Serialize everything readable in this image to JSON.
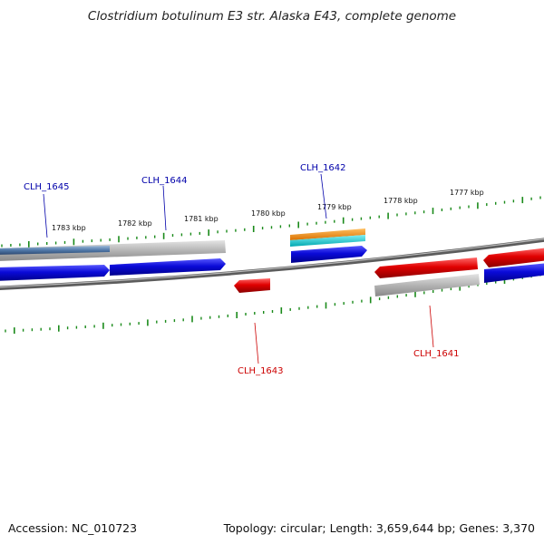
{
  "title": "Clostridium botulinum E3 str. Alaska E43, complete genome",
  "footer": {
    "accession": "Accession: NC_010723",
    "summary": "Topology: circular; Length: 3,659,644 bp; Genes: 3,370"
  },
  "colors": {
    "forward_gene": "#0a0ad8",
    "reverse_gene": "#e00000",
    "pseudo_gene": "#b0b0b0",
    "rna_orange": "#f08c00",
    "rna_cyan": "#00c8d0",
    "backbone": "#777777",
    "tick": "#1a8a1a",
    "label_forward": "#0000aa",
    "label_reverse": "#cc0000"
  },
  "tick_labels": [
    "1783 kbp",
    "1782 kbp",
    "1781 kbp",
    "1780 kbp",
    "1779 kbp",
    "1778 kbp",
    "1777 kbp"
  ],
  "genes": [
    {
      "name": "CLH_1645",
      "strand": "forward"
    },
    {
      "name": "CLH_1644",
      "strand": "forward"
    },
    {
      "name": "CLH_1642",
      "strand": "forward"
    },
    {
      "name": "CLH_1643",
      "strand": "reverse"
    },
    {
      "name": "CLH_1641",
      "strand": "reverse"
    }
  ]
}
